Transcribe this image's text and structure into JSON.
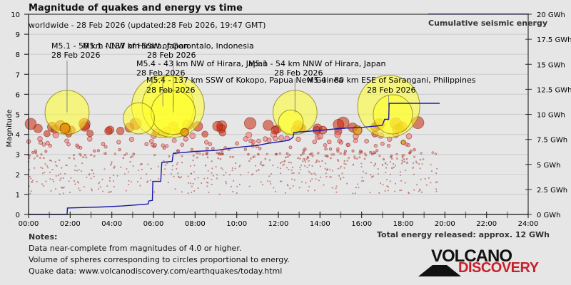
{
  "header": {
    "title": "Magnitude of quakes and energy vs time",
    "subtitle": "worldwide - 28 Feb 2026 (updated:28 Feb 2026, 19:47 GMT)",
    "legend_label": "Cumulative seismic energy"
  },
  "notes": {
    "heading": "Notes:",
    "lines": [
      "Data near-complete from magnitudes of 4.0 or higher.",
      "Volume of spheres corresponding to circles proportional to energy.",
      "Quake data: www.volcanodiscovery.com/earthquakes/today.html"
    ]
  },
  "total_energy": "Total energy released: approx. 12 GWh",
  "logo": {
    "top": "VOLCANO",
    "bottom": "DISCOVERY"
  },
  "colors": {
    "background": "#e6e6e6",
    "energy_line": "#1a1aa8",
    "large_quake": "#ffff33",
    "mid_quake": "#e08a00",
    "strong_quake": "#cc2200",
    "small_quake": "#f07070",
    "logo_red": "#c8202a"
  },
  "chart_data": {
    "type": "scatter",
    "title": "Magnitude of quakes and energy vs time",
    "xlabel": "",
    "ylabel": "Magnitude",
    "y2label": "Cumulative seismic energy",
    "xlim": [
      0,
      24
    ],
    "ylim": [
      0,
      10
    ],
    "y2lim": [
      0,
      20
    ],
    "grid": true,
    "legend": "top-right",
    "x_ticks": [
      "00:00",
      "02:00",
      "04:00",
      "06:00",
      "08:00",
      "10:00",
      "12:00",
      "14:00",
      "16:00",
      "18:00",
      "20:00",
      "22:00",
      "24:00"
    ],
    "y_ticks": [
      "0",
      "1",
      "2",
      "3",
      "4",
      "5",
      "6",
      "7",
      "8",
      "9",
      "10"
    ],
    "y2_ticks": [
      "0 GWh",
      "2.5 GWh",
      "5 GWh",
      "7.5 GWh",
      "10 GWh",
      "12.5 GWh",
      "15 GWh",
      "17.5 GWh",
      "20 GWh"
    ],
    "annotations": [
      {
        "text": "M5.1 - 50 km NNW of Hirara, Japan",
        "date": "28 Feb 2026",
        "time": 1.85,
        "mag": 5.1
      },
      {
        "text": "M5.1 - 137 km SSW of Gorontalo, Indonesia",
        "date": "28 Feb 2026",
        "time": 6.95,
        "mag": 5.1
      },
      {
        "text": "M5.4 - 43 km NW of Hirara, Japan",
        "date": "28 Feb 2026",
        "time": 6.45,
        "mag": 5.4
      },
      {
        "text": "M5.1 - 54 km NNW of Hirara, Japan",
        "date": "28 Feb 2026",
        "time": 12.8,
        "mag": 5.1
      },
      {
        "text": "M5.4 - 137 km SSW of Kokopo, Papua New Guinea",
        "date": "28 Feb 2026",
        "time": 6.95,
        "mag": 5.4
      },
      {
        "text": "M5.4 - 80 km ESE of Sarangani, Philippines",
        "date": "28 Feb 2026",
        "time": 17.3,
        "mag": 5.4
      }
    ],
    "energy_series": {
      "name": "Cumulative seismic energy",
      "unit": "GWh",
      "points": [
        [
          0.0,
          0.0
        ],
        [
          1.85,
          0.0
        ],
        [
          1.87,
          0.65
        ],
        [
          3.5,
          0.75
        ],
        [
          4.5,
          0.85
        ],
        [
          5.5,
          1.0
        ],
        [
          5.75,
          1.05
        ],
        [
          5.78,
          1.35
        ],
        [
          5.95,
          1.4
        ],
        [
          5.97,
          3.3
        ],
        [
          6.35,
          3.3
        ],
        [
          6.4,
          5.2
        ],
        [
          6.9,
          5.3
        ],
        [
          6.95,
          6.1
        ],
        [
          8.0,
          6.3
        ],
        [
          9.0,
          6.4
        ],
        [
          10.0,
          6.7
        ],
        [
          11.0,
          6.9
        ],
        [
          11.5,
          7.1
        ],
        [
          12.5,
          7.4
        ],
        [
          12.7,
          7.7
        ],
        [
          12.75,
          8.2
        ],
        [
          14.0,
          8.4
        ],
        [
          15.0,
          8.6
        ],
        [
          16.0,
          8.7
        ],
        [
          16.5,
          8.8
        ],
        [
          17.0,
          8.9
        ],
        [
          17.1,
          9.5
        ],
        [
          17.3,
          9.5
        ],
        [
          17.32,
          11.1
        ],
        [
          19.75,
          11.1
        ]
      ]
    },
    "quakes_large": [
      {
        "time": 1.85,
        "mag": 5.1,
        "color": "yellow"
      },
      {
        "time": 6.45,
        "mag": 5.4,
        "color": "yellow"
      },
      {
        "time": 6.95,
        "mag": 5.4,
        "color": "yellow"
      },
      {
        "time": 6.95,
        "mag": 5.1,
        "color": "yellow"
      },
      {
        "time": 12.8,
        "mag": 5.1,
        "color": "yellow"
      },
      {
        "time": 17.3,
        "mag": 5.4,
        "color": "yellow"
      },
      {
        "time": 17.5,
        "mag": 5.0,
        "color": "yellow"
      },
      {
        "time": 5.3,
        "mag": 4.8,
        "color": "yellow"
      },
      {
        "time": 12.6,
        "mag": 4.6,
        "color": "yellow"
      },
      {
        "time": 1.75,
        "mag": 4.3,
        "color": "orange"
      },
      {
        "time": 7.5,
        "mag": 4.1,
        "color": "orange"
      },
      {
        "time": 18.0,
        "mag": 3.6,
        "color": "orange"
      },
      {
        "time": 15.8,
        "mag": 4.2,
        "color": "orange"
      }
    ],
    "quakes_medium_count_note": "many M3-4.6 red/orange circles between 01:00-18:30; hundreds of small M1-3 dots"
  }
}
